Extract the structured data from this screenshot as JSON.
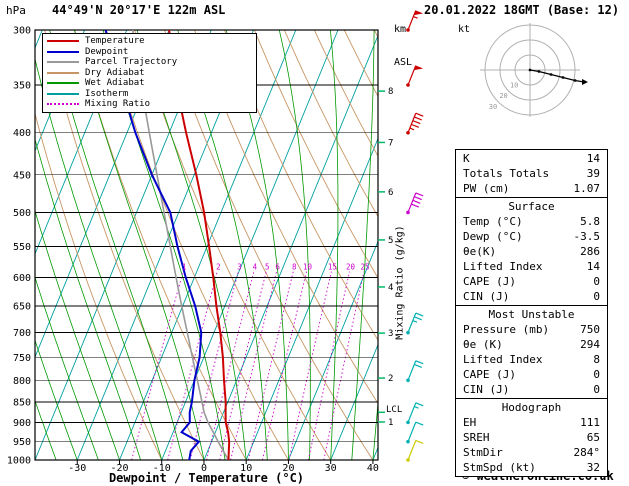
{
  "header": {
    "pressure_unit": "hPa",
    "station_title": "44°49'N 20°17'E 122m ASL",
    "datetime_title": "20.01.2022 18GMT (Base: 12)",
    "km_asl_line1": "km",
    "km_asl_line2": "ASL",
    "copyright": "© weatheronline.co.uk"
  },
  "axes": {
    "xlabel": "Dewpoint / Temperature (°C)",
    "mixing_ratio_label": "Mixing Ratio (g/kg)",
    "lcl_label": "LCL",
    "hodograph_unit": "kt"
  },
  "legend": {
    "items": [
      {
        "label": "Temperature",
        "color": "#cc0000",
        "dash": false
      },
      {
        "label": "Dewpoint",
        "color": "#0000cc",
        "dash": false
      },
      {
        "label": "Parcel Trajectory",
        "color": "#999999",
        "dash": false
      },
      {
        "label": "Dry Adiabat",
        "color": "#c89664",
        "dash": false
      },
      {
        "label": "Wet Adiabat",
        "color": "#009900",
        "dash": false
      },
      {
        "label": "Isotherm",
        "color": "#00a0a0",
        "dash": false
      },
      {
        "label": "Mixing Ratio",
        "color": "#cc00cc",
        "dash": true
      }
    ]
  },
  "chart_data": {
    "type": "skewt-logp",
    "title": "44°49'N 20°17'E 122m ASL",
    "pressure_axis_hPa": [
      300,
      350,
      400,
      450,
      500,
      550,
      600,
      650,
      700,
      750,
      800,
      850,
      900,
      950,
      1000
    ],
    "temp_axis_C": [
      -30,
      -20,
      -10,
      0,
      10,
      20,
      30,
      40
    ],
    "km_asl_ticks": [
      1,
      2,
      3,
      4,
      5,
      6,
      7,
      8
    ],
    "km_tick_pressures_hPa": [
      899,
      795,
      701,
      616,
      540,
      472,
      411,
      356
    ],
    "lcl_pressure_hPa": 875,
    "isotherm_range_C": [
      -90,
      40
    ],
    "isotherm_step_C": 10,
    "dry_adiabat_range_C": [
      -10,
      110
    ],
    "dry_adiabat_step_C": 10,
    "wet_adiabat_range_C": [
      -40,
      40
    ],
    "wet_adiabat_step_C": 5,
    "mixing_ratio_lines_gkg": [
      1,
      2,
      3,
      4,
      5,
      6,
      8,
      10,
      15,
      20,
      25
    ],
    "sounding": {
      "pressure_hPa": [
        1000,
        975,
        950,
        925,
        900,
        875,
        850,
        800,
        750,
        700,
        650,
        600,
        550,
        500,
        450,
        400,
        350,
        300
      ],
      "temperature_C": [
        5.8,
        5.0,
        4.2,
        3.0,
        1.5,
        0.5,
        -0.5,
        -3.0,
        -5.5,
        -8.5,
        -12.0,
        -15.5,
        -19.5,
        -24.0,
        -29.5,
        -36.0,
        -43.0,
        -50.0
      ],
      "dewpoint_C": [
        -3.5,
        -4.0,
        -3.0,
        -8.0,
        -7.0,
        -8.0,
        -8.5,
        -10.0,
        -11.0,
        -13.0,
        -17.0,
        -22.0,
        -27.0,
        -32.0,
        -40.0,
        -48.0,
        -56.0,
        -65.0
      ],
      "parcel_C": [
        5.8,
        3.7,
        1.6,
        -0.5,
        -2.7,
        -4.6,
        -6.1,
        -9.3,
        -12.7,
        -16.3,
        -20.2,
        -24.3,
        -28.7,
        -33.5,
        -38.8,
        -44.7,
        -51.3,
        -58.6
      ]
    },
    "wind_barbs": [
      {
        "pressure_hPa": 300,
        "speed_kt": 55,
        "color": "#cc0000"
      },
      {
        "pressure_hPa": 350,
        "speed_kt": 50,
        "color": "#cc0000"
      },
      {
        "pressure_hPa": 400,
        "speed_kt": 45,
        "color": "#cc0000"
      },
      {
        "pressure_hPa": 500,
        "speed_kt": 40,
        "color": "#cc00cc"
      },
      {
        "pressure_hPa": 700,
        "speed_kt": 25,
        "color": "#00b0b0"
      },
      {
        "pressure_hPa": 800,
        "speed_kt": 20,
        "color": "#00b0b0"
      },
      {
        "pressure_hPa": 900,
        "speed_kt": 15,
        "color": "#00b0b0"
      },
      {
        "pressure_hPa": 950,
        "speed_kt": 10,
        "color": "#00b0b0"
      },
      {
        "pressure_hPa": 1000,
        "speed_kt": 10,
        "color": "#cccc00"
      }
    ],
    "hodograph": {
      "rings_kt": [
        10,
        20,
        30
      ],
      "trace_u_kt": [
        0,
        6,
        14,
        22,
        30,
        36
      ],
      "trace_v_kt": [
        0,
        -1,
        -3,
        -5,
        -7,
        -8
      ],
      "storm_dir_deg": 284,
      "storm_speed_kt": 32
    },
    "colors": {
      "temperature": "#cc0000",
      "dewpoint": "#0000cc",
      "parcel": "#999999",
      "dry_adiabat": "#c89664",
      "wet_adiabat": "#009900",
      "isotherm": "#00a0a0",
      "mixing_ratio": "#cc00cc",
      "grid": "#000000",
      "km_tick": "#00bb66"
    }
  },
  "table": {
    "top": [
      [
        "K",
        "14"
      ],
      [
        "Totals Totals",
        "39"
      ],
      [
        "PW (cm)",
        "1.07"
      ]
    ],
    "sections": [
      {
        "title": "Surface",
        "rows": [
          [
            "Temp (°C)",
            "5.8"
          ],
          [
            "Dewp (°C)",
            "-3.5"
          ],
          [
            "θe(K)",
            "286"
          ],
          [
            "Lifted Index",
            "14"
          ],
          [
            "CAPE (J)",
            "0"
          ],
          [
            "CIN (J)",
            "0"
          ]
        ]
      },
      {
        "title": "Most Unstable",
        "rows": [
          [
            "Pressure (mb)",
            "750"
          ],
          [
            "θe (K)",
            "294"
          ],
          [
            "Lifted Index",
            "8"
          ],
          [
            "CAPE (J)",
            "0"
          ],
          [
            "CIN (J)",
            "0"
          ]
        ]
      },
      {
        "title": "Hodograph",
        "rows": [
          [
            "EH",
            "111"
          ],
          [
            "SREH",
            "65"
          ],
          [
            "StmDir",
            "284°"
          ],
          [
            "StmSpd (kt)",
            "32"
          ]
        ]
      }
    ]
  }
}
